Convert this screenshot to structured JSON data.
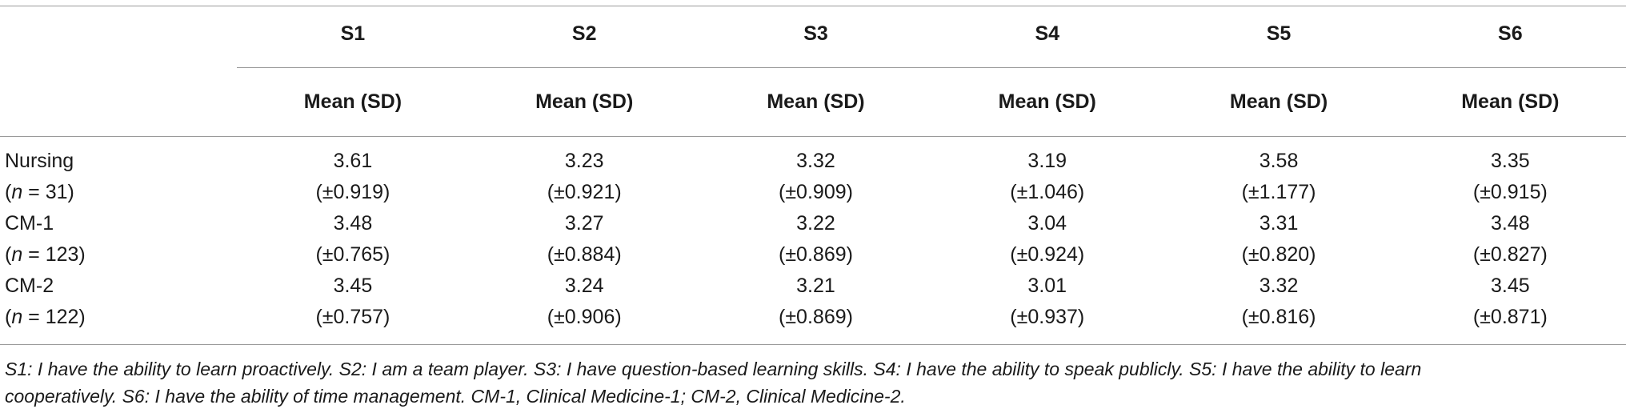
{
  "table": {
    "columns": [
      "S1",
      "S2",
      "S3",
      "S4",
      "S5",
      "S6"
    ],
    "subheader": "Mean (SD)",
    "rows": [
      {
        "label": "Nursing",
        "n_prefix": "(",
        "n_var": "n",
        "n_value": " = 31)",
        "means": [
          "3.61",
          "3.23",
          "3.32",
          "3.19",
          "3.58",
          "3.35"
        ],
        "sds": [
          "(±0.919)",
          "(±0.921)",
          "(±0.909)",
          "(±1.046)",
          "(±1.177)",
          "(±0.915)"
        ]
      },
      {
        "label": "CM-1",
        "n_prefix": "(",
        "n_var": "n",
        "n_value": " = 123)",
        "means": [
          "3.48",
          "3.27",
          "3.22",
          "3.04",
          "3.31",
          "3.48"
        ],
        "sds": [
          "(±0.765)",
          "(±0.884)",
          "(±0.869)",
          "(±0.924)",
          "(±0.820)",
          "(±0.827)"
        ]
      },
      {
        "label": "CM-2",
        "n_prefix": "(",
        "n_var": "n",
        "n_value": " = 122)",
        "means": [
          "3.45",
          "3.24",
          "3.21",
          "3.01",
          "3.32",
          "3.45"
        ],
        "sds": [
          "(±0.757)",
          "(±0.906)",
          "(±0.869)",
          "(±0.937)",
          "(±0.816)",
          "(±0.871)"
        ]
      }
    ]
  },
  "footnote": {
    "line1": "S1: I have the ability to learn proactively. S2: I am a team player. S3: I have question-based learning skills. S4: I have the ability to speak publicly. S5: I have the ability to learn",
    "line2": "cooperatively. S6: I have the ability of time management. CM-1, Clinical Medicine-1; CM-2, Clinical Medicine-2."
  }
}
